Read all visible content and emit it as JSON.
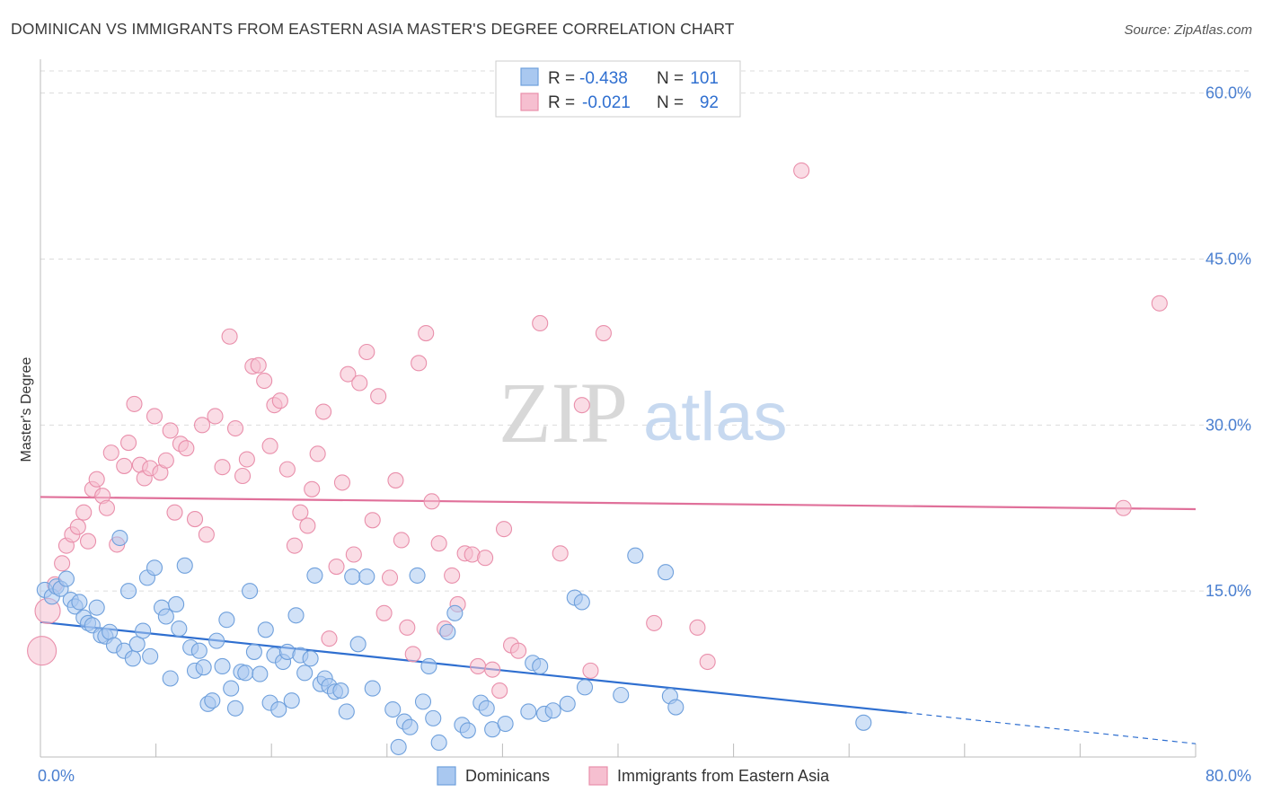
{
  "title": "DOMINICAN VS IMMIGRANTS FROM EASTERN ASIA MASTER'S DEGREE CORRELATION CHART",
  "source": "Source: ZipAtlas.com",
  "watermark": {
    "part1": "ZIP",
    "part2": "atlas"
  },
  "colors": {
    "blue_fill": "#a9c8f0",
    "blue_stroke": "#6fa0dc",
    "blue_line": "#2f6fd0",
    "pink_fill": "#f6bfd0",
    "pink_stroke": "#e98fab",
    "pink_line": "#e0709a",
    "grid": "#dcdcdc",
    "tick_label": "#4a7fd0"
  },
  "legend": {
    "rows": [
      {
        "r_label": "R =",
        "r_value": "-0.438",
        "n_label": "N =",
        "n_value": "101"
      },
      {
        "r_label": "R =",
        "r_value": "-0.021",
        "n_label": "N =",
        "n_value": "92"
      }
    ]
  },
  "chart_data": {
    "type": "scatter",
    "title": "DOMINICAN VS IMMIGRANTS FROM EASTERN ASIA MASTER'S DEGREE CORRELATION CHART",
    "xlabel": "",
    "ylabel": "Master's Degree",
    "xlim": [
      0,
      80
    ],
    "ylim": [
      0,
      62
    ],
    "x_tick_labels": [
      "0.0%",
      "80.0%"
    ],
    "y_ticks": [
      15,
      30,
      45,
      60
    ],
    "y_tick_labels": [
      "15.0%",
      "30.0%",
      "45.0%",
      "60.0%"
    ],
    "grid": true,
    "legend_position": "top-center",
    "series": [
      {
        "name": "Dominicans",
        "r": -0.438,
        "n": 101,
        "trend": {
          "x0": 0,
          "y0": 12.2,
          "x1": 60,
          "y1": 4.0,
          "dashed_to_x": 80,
          "dashed_to_y": 1.2
        },
        "points": [
          [
            0.3,
            15.1
          ],
          [
            0.8,
            14.5
          ],
          [
            1.1,
            15.4
          ],
          [
            1.4,
            15.2
          ],
          [
            1.8,
            16.1
          ],
          [
            2.1,
            14.2
          ],
          [
            2.4,
            13.6
          ],
          [
            2.7,
            14.0
          ],
          [
            3.0,
            12.6
          ],
          [
            3.3,
            12.1
          ],
          [
            3.6,
            11.9
          ],
          [
            3.9,
            13.5
          ],
          [
            4.2,
            11.0
          ],
          [
            4.5,
            10.9
          ],
          [
            4.8,
            11.3
          ],
          [
            5.1,
            10.1
          ],
          [
            5.5,
            19.8
          ],
          [
            5.8,
            9.6
          ],
          [
            6.1,
            15.0
          ],
          [
            6.4,
            8.9
          ],
          [
            6.7,
            10.2
          ],
          [
            7.1,
            11.4
          ],
          [
            7.4,
            16.2
          ],
          [
            7.6,
            9.1
          ],
          [
            7.9,
            17.1
          ],
          [
            8.4,
            13.5
          ],
          [
            8.7,
            12.7
          ],
          [
            9.0,
            7.1
          ],
          [
            9.4,
            13.8
          ],
          [
            9.6,
            11.6
          ],
          [
            10.0,
            17.3
          ],
          [
            10.4,
            9.9
          ],
          [
            10.7,
            7.8
          ],
          [
            11.0,
            9.6
          ],
          [
            11.3,
            8.1
          ],
          [
            11.6,
            4.8
          ],
          [
            11.9,
            5.1
          ],
          [
            12.2,
            10.5
          ],
          [
            12.6,
            8.2
          ],
          [
            12.9,
            12.4
          ],
          [
            13.2,
            6.2
          ],
          [
            13.5,
            4.4
          ],
          [
            13.9,
            7.7
          ],
          [
            14.2,
            7.6
          ],
          [
            14.5,
            15.0
          ],
          [
            14.8,
            9.5
          ],
          [
            15.2,
            7.5
          ],
          [
            15.6,
            11.5
          ],
          [
            15.9,
            4.9
          ],
          [
            16.2,
            9.2
          ],
          [
            16.5,
            4.3
          ],
          [
            16.8,
            8.6
          ],
          [
            17.1,
            9.5
          ],
          [
            17.4,
            5.1
          ],
          [
            17.7,
            12.8
          ],
          [
            18.0,
            9.2
          ],
          [
            18.3,
            7.6
          ],
          [
            18.7,
            8.9
          ],
          [
            19.0,
            16.4
          ],
          [
            19.4,
            6.6
          ],
          [
            19.7,
            7.1
          ],
          [
            20.0,
            6.4
          ],
          [
            20.4,
            5.9
          ],
          [
            20.8,
            6.0
          ],
          [
            21.2,
            4.1
          ],
          [
            21.6,
            16.3
          ],
          [
            22.0,
            10.2
          ],
          [
            22.6,
            16.3
          ],
          [
            23.0,
            6.2
          ],
          [
            24.4,
            4.3
          ],
          [
            24.8,
            0.9
          ],
          [
            25.2,
            3.2
          ],
          [
            25.6,
            2.7
          ],
          [
            26.1,
            16.4
          ],
          [
            26.5,
            5.0
          ],
          [
            26.9,
            8.2
          ],
          [
            27.2,
            3.5
          ],
          [
            27.6,
            1.3
          ],
          [
            28.2,
            11.3
          ],
          [
            28.7,
            13.0
          ],
          [
            29.2,
            2.9
          ],
          [
            29.6,
            2.4
          ],
          [
            30.5,
            4.9
          ],
          [
            30.9,
            4.4
          ],
          [
            31.3,
            2.5
          ],
          [
            32.2,
            3.0
          ],
          [
            33.8,
            4.1
          ],
          [
            34.1,
            8.5
          ],
          [
            34.6,
            8.2
          ],
          [
            34.9,
            3.9
          ],
          [
            35.5,
            4.2
          ],
          [
            36.5,
            4.8
          ],
          [
            37.0,
            14.4
          ],
          [
            37.5,
            14.0
          ],
          [
            37.7,
            6.3
          ],
          [
            40.2,
            5.6
          ],
          [
            41.2,
            18.2
          ],
          [
            43.3,
            16.7
          ],
          [
            43.6,
            5.5
          ],
          [
            44.0,
            4.5
          ],
          [
            57.0,
            3.1
          ]
        ]
      },
      {
        "name": "Immigrants from Eastern Asia",
        "r": -0.021,
        "n": 92,
        "trend": {
          "x0": 0,
          "y0": 23.5,
          "x1": 80,
          "y1": 22.4
        },
        "points": [
          [
            0.1,
            9.6
          ],
          [
            0.5,
            13.2
          ],
          [
            1.0,
            15.6
          ],
          [
            1.5,
            17.5
          ],
          [
            1.8,
            19.1
          ],
          [
            2.2,
            20.1
          ],
          [
            2.6,
            20.8
          ],
          [
            3.0,
            22.1
          ],
          [
            3.3,
            19.5
          ],
          [
            3.6,
            24.2
          ],
          [
            3.9,
            25.1
          ],
          [
            4.3,
            23.6
          ],
          [
            4.6,
            22.5
          ],
          [
            4.9,
            27.5
          ],
          [
            5.3,
            19.2
          ],
          [
            5.8,
            26.3
          ],
          [
            6.1,
            28.4
          ],
          [
            6.5,
            31.9
          ],
          [
            6.9,
            26.4
          ],
          [
            7.2,
            25.2
          ],
          [
            7.6,
            26.1
          ],
          [
            7.9,
            30.8
          ],
          [
            8.3,
            25.7
          ],
          [
            8.7,
            26.8
          ],
          [
            9.0,
            29.5
          ],
          [
            9.3,
            22.1
          ],
          [
            9.7,
            28.3
          ],
          [
            10.1,
            27.9
          ],
          [
            10.7,
            21.5
          ],
          [
            11.2,
            30.0
          ],
          [
            11.5,
            20.1
          ],
          [
            12.1,
            30.8
          ],
          [
            12.6,
            26.2
          ],
          [
            13.1,
            38.0
          ],
          [
            13.5,
            29.7
          ],
          [
            14.0,
            25.4
          ],
          [
            14.3,
            26.9
          ],
          [
            14.7,
            35.3
          ],
          [
            15.1,
            35.4
          ],
          [
            15.5,
            34.0
          ],
          [
            15.9,
            28.1
          ],
          [
            16.2,
            31.8
          ],
          [
            16.6,
            32.2
          ],
          [
            17.1,
            26.0
          ],
          [
            17.6,
            19.1
          ],
          [
            18.0,
            22.1
          ],
          [
            18.5,
            20.9
          ],
          [
            18.8,
            24.2
          ],
          [
            19.2,
            27.4
          ],
          [
            19.6,
            31.2
          ],
          [
            20.0,
            10.7
          ],
          [
            20.5,
            17.2
          ],
          [
            20.9,
            24.8
          ],
          [
            21.3,
            34.6
          ],
          [
            21.7,
            18.3
          ],
          [
            22.1,
            33.8
          ],
          [
            22.6,
            36.6
          ],
          [
            23.0,
            21.4
          ],
          [
            23.4,
            32.6
          ],
          [
            23.8,
            13.0
          ],
          [
            24.2,
            16.2
          ],
          [
            24.6,
            25.0
          ],
          [
            25.0,
            19.6
          ],
          [
            25.4,
            11.7
          ],
          [
            25.8,
            9.3
          ],
          [
            26.2,
            35.6
          ],
          [
            26.7,
            38.3
          ],
          [
            27.1,
            23.1
          ],
          [
            27.6,
            19.3
          ],
          [
            28.0,
            11.6
          ],
          [
            28.5,
            16.4
          ],
          [
            28.9,
            13.8
          ],
          [
            29.4,
            18.4
          ],
          [
            29.9,
            18.3
          ],
          [
            30.3,
            8.2
          ],
          [
            30.8,
            18.0
          ],
          [
            31.3,
            7.9
          ],
          [
            31.8,
            6.0
          ],
          [
            32.1,
            20.6
          ],
          [
            32.6,
            10.1
          ],
          [
            33.1,
            9.6
          ],
          [
            34.6,
            39.2
          ],
          [
            36.0,
            18.4
          ],
          [
            37.5,
            31.8
          ],
          [
            38.1,
            7.8
          ],
          [
            39.0,
            38.3
          ],
          [
            42.5,
            12.1
          ],
          [
            45.5,
            11.7
          ],
          [
            46.2,
            8.6
          ],
          [
            52.7,
            53.0
          ],
          [
            77.5,
            41.0
          ],
          [
            75.0,
            22.5
          ]
        ]
      }
    ]
  },
  "bottom_legend": [
    {
      "label": "Dominicans"
    },
    {
      "label": "Immigrants from Eastern Asia"
    }
  ]
}
